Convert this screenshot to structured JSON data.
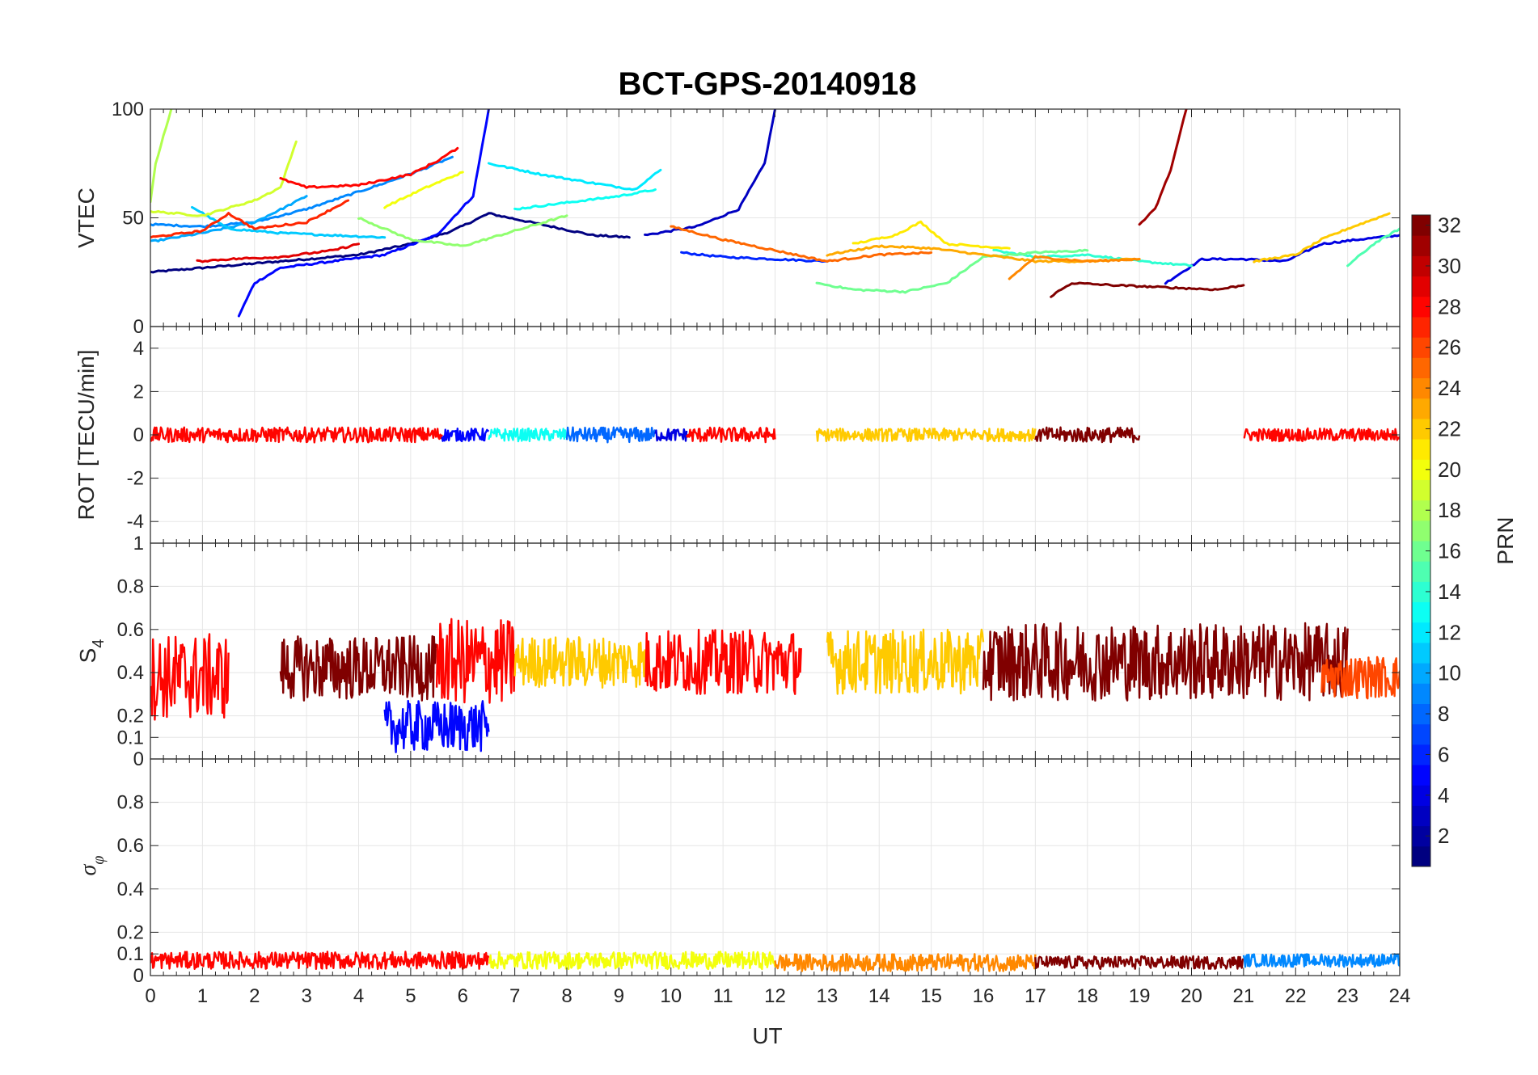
{
  "figure": {
    "title": "BCT-GPS-20140918",
    "xlabel": "UT",
    "x_ticks": [
      "0",
      "1",
      "2",
      "3",
      "4",
      "5",
      "6",
      "7",
      "8",
      "9",
      "10",
      "11",
      "12",
      "13",
      "14",
      "15",
      "16",
      "17",
      "18",
      "19",
      "20",
      "21",
      "22",
      "23",
      "24"
    ]
  },
  "chart_data": [
    {
      "type": "line",
      "id": "vtec",
      "ylabel": "VTEC",
      "xlim": [
        0,
        24
      ],
      "ylim": [
        0,
        100
      ],
      "y_ticks": [
        0,
        50,
        100
      ],
      "y_tick_labels": [
        "0",
        "50",
        "100"
      ],
      "color_by": "PRN",
      "series": [
        {
          "prn": 1,
          "points": [
            [
              0,
              25
            ],
            [
              1,
              27
            ],
            [
              2,
              29
            ],
            [
              3,
              31
            ],
            [
              4,
              33
            ],
            [
              5,
              38
            ],
            [
              5.8,
              44
            ],
            [
              6.5,
              52
            ],
            [
              7.3,
              48
            ],
            [
              8.5,
              42
            ],
            [
              9.2,
              41
            ]
          ]
        },
        {
          "prn": 5,
          "points": [
            [
              1.7,
              5
            ],
            [
              2.0,
              20
            ],
            [
              2.5,
              27
            ],
            [
              3.5,
              30
            ],
            [
              4.5,
              33
            ],
            [
              5.5,
              42
            ],
            [
              6.2,
              60
            ],
            [
              6.5,
              100
            ]
          ]
        },
        {
          "prn": 3,
          "points": [
            [
              9.5,
              42
            ],
            [
              10.5,
              46
            ],
            [
              11.3,
              54
            ],
            [
              11.8,
              75
            ],
            [
              12.0,
              100
            ]
          ]
        },
        {
          "prn": 6,
          "points": [
            [
              10.2,
              34
            ],
            [
              11,
              32
            ],
            [
              12,
              31
            ],
            [
              13,
              30
            ]
          ]
        },
        {
          "prn": 4,
          "points": [
            [
              19.5,
              20
            ],
            [
              20.2,
              31
            ],
            [
              21,
              31
            ],
            [
              21.8,
              30
            ],
            [
              22.5,
              38
            ],
            [
              23.2,
              40
            ],
            [
              24,
              42
            ]
          ]
        },
        {
          "prn": 9,
          "points": [
            [
              0,
              47
            ],
            [
              1,
              46
            ],
            [
              2,
              48
            ],
            [
              3,
              54
            ],
            [
              3.5,
              58
            ],
            [
              4,
              62
            ],
            [
              4.5,
              66
            ],
            [
              5.2,
              72
            ],
            [
              5.8,
              78
            ]
          ]
        },
        {
          "prn": 10,
          "points": [
            [
              0,
              39
            ],
            [
              1,
              43
            ],
            [
              2,
              48
            ],
            [
              2.6,
              55
            ],
            [
              3.0,
              60
            ]
          ]
        },
        {
          "prn": 11,
          "points": [
            [
              0.8,
              55
            ],
            [
              1.5,
              45
            ],
            [
              2.5,
              43
            ],
            [
              3.5,
              42
            ],
            [
              4.5,
              41
            ]
          ]
        },
        {
          "prn": 12,
          "points": [
            [
              6.5,
              75
            ],
            [
              7.5,
              70
            ],
            [
              8.5,
              66
            ],
            [
              9.3,
              63
            ],
            [
              9.8,
              72
            ]
          ]
        },
        {
          "prn": 13,
          "points": [
            [
              7,
              54
            ],
            [
              8,
              57
            ],
            [
              9,
              60
            ],
            [
              9.7,
              63
            ]
          ]
        },
        {
          "prn": 14,
          "points": [
            [
              16.2,
              35
            ],
            [
              17,
              32
            ],
            [
              18,
              33
            ],
            [
              19,
              30
            ],
            [
              20,
              28
            ]
          ]
        },
        {
          "prn": 15,
          "points": [
            [
              23,
              28
            ],
            [
              23.5,
              38
            ],
            [
              24,
              45
            ]
          ]
        },
        {
          "prn": 16,
          "points": [
            [
              12.8,
              20
            ],
            [
              13.5,
              17
            ],
            [
              14.5,
              16
            ],
            [
              15.3,
              20
            ],
            [
              16,
              32
            ],
            [
              17,
              34
            ],
            [
              18,
              35
            ]
          ]
        },
        {
          "prn": 17,
          "points": [
            [
              4,
              50
            ],
            [
              5,
              40
            ],
            [
              6,
              37
            ],
            [
              7,
              44
            ],
            [
              8,
              51
            ]
          ]
        },
        {
          "prn": 18,
          "points": [
            [
              0,
              57
            ],
            [
              0.1,
              75
            ],
            [
              0.4,
              100
            ]
          ]
        },
        {
          "prn": 19,
          "points": [
            [
              0,
              53
            ],
            [
              1,
              51
            ],
            [
              2,
              58
            ],
            [
              2.5,
              64
            ],
            [
              2.8,
              85
            ]
          ]
        },
        {
          "prn": 20,
          "points": [
            [
              4.5,
              55
            ],
            [
              5.3,
              64
            ],
            [
              6,
              71
            ]
          ]
        },
        {
          "prn": 21,
          "points": [
            [
              13.5,
              38
            ],
            [
              14.3,
              42
            ],
            [
              14.8,
              48
            ],
            [
              15.3,
              38
            ],
            [
              16.5,
              36
            ]
          ]
        },
        {
          "prn": 22,
          "points": [
            [
              21.2,
              30
            ],
            [
              22,
              33
            ],
            [
              22.5,
              40
            ],
            [
              23,
              45
            ],
            [
              23.8,
              52
            ]
          ]
        },
        {
          "prn": 23,
          "points": [
            [
              13,
              33
            ],
            [
              14,
              37
            ],
            [
              15,
              36
            ],
            [
              16,
              33
            ],
            [
              17,
              30
            ],
            [
              18,
              30
            ],
            [
              19,
              31
            ]
          ]
        },
        {
          "prn": 24,
          "points": [
            [
              16.5,
              22
            ],
            [
              17,
              32
            ],
            [
              18,
              30
            ],
            [
              19,
              31
            ]
          ]
        },
        {
          "prn": 25,
          "points": [
            [
              10,
              46
            ],
            [
              11,
              40
            ],
            [
              12,
              35
            ],
            [
              13,
              30
            ],
            [
              14,
              33
            ],
            [
              15,
              34
            ]
          ]
        },
        {
          "prn": 27,
          "points": [
            [
              0,
              41
            ],
            [
              1,
              44
            ],
            [
              1.5,
              52
            ],
            [
              2,
              45
            ],
            [
              3,
              48
            ],
            [
              3.8,
              58
            ]
          ]
        },
        {
          "prn": 28,
          "points": [
            [
              2.5,
              68
            ],
            [
              3,
              64
            ],
            [
              4,
              65
            ],
            [
              5,
              70
            ],
            [
              5.5,
              76
            ],
            [
              5.9,
              82
            ]
          ]
        },
        {
          "prn": 29,
          "points": [
            [
              0.9,
              30
            ],
            [
              1.5,
              31
            ],
            [
              2.5,
              32
            ],
            [
              3.5,
              35
            ],
            [
              4,
              38
            ]
          ]
        },
        {
          "prn": 31,
          "points": [
            [
              19,
              47
            ],
            [
              19.3,
              54
            ],
            [
              19.6,
              72
            ],
            [
              19.9,
              100
            ]
          ]
        },
        {
          "prn": 32,
          "points": [
            [
              17.3,
              14
            ],
            [
              17.7,
              20
            ],
            [
              18.5,
              19
            ],
            [
              19.5,
              18
            ],
            [
              20.5,
              17
            ],
            [
              21,
              19
            ]
          ]
        }
      ]
    },
    {
      "type": "line",
      "id": "rot",
      "ylabel": "ROT [TECU/min]",
      "xlim": [
        0,
        24
      ],
      "ylim": [
        -5,
        5
      ],
      "y_ticks": [
        -4,
        -2,
        0,
        2,
        4
      ],
      "y_tick_labels": [
        "-4",
        "-2",
        "0",
        "2",
        "4"
      ],
      "color_by": "PRN",
      "band_center": 0,
      "bands": [
        {
          "prn": 28,
          "x_range": [
            0,
            5.6
          ],
          "amplitude": 0.35
        },
        {
          "prn": 5,
          "x_range": [
            5.6,
            6.5
          ],
          "amplitude": 0.3
        },
        {
          "prn": 13,
          "x_range": [
            6.5,
            8.0
          ],
          "amplitude": 0.3
        },
        {
          "prn": 8,
          "x_range": [
            8.0,
            9.7
          ],
          "amplitude": 0.35
        },
        {
          "prn": 4,
          "x_range": [
            9.7,
            10.3
          ],
          "amplitude": 0.3
        },
        {
          "prn": 28,
          "x_range": [
            10.3,
            12.0
          ],
          "amplitude": 0.35
        },
        {
          "prn": 22,
          "x_range": [
            12.8,
            17.0
          ],
          "amplitude": 0.3
        },
        {
          "prn": 32,
          "x_range": [
            17.0,
            19.0
          ],
          "amplitude": 0.35
        },
        {
          "prn": 28,
          "x_range": [
            21.0,
            24.0
          ],
          "amplitude": 0.3
        }
      ]
    },
    {
      "type": "line",
      "id": "s4",
      "ylabel": "S4",
      "xlim": [
        0,
        24
      ],
      "ylim": [
        0,
        1
      ],
      "y_ticks": [
        0,
        0.1,
        0.2,
        0.4,
        0.6,
        0.8,
        1
      ],
      "y_tick_labels": [
        "0",
        "0.1",
        "0.2",
        "0.4",
        "0.6",
        "0.8",
        "1"
      ],
      "color_by": "PRN",
      "bands": [
        {
          "prn": 28,
          "x_range": [
            0,
            1.5
          ],
          "center": 0.38,
          "amplitude": 0.2
        },
        {
          "prn": 32,
          "x_range": [
            2.5,
            5.5
          ],
          "center": 0.42,
          "amplitude": 0.15
        },
        {
          "prn": 5,
          "x_range": [
            4.5,
            6.5
          ],
          "center": 0.15,
          "amplitude": 0.12
        },
        {
          "prn": 28,
          "x_range": [
            5.5,
            7.0
          ],
          "center": 0.45,
          "amplitude": 0.2
        },
        {
          "prn": 22,
          "x_range": [
            7.0,
            9.5
          ],
          "center": 0.45,
          "amplitude": 0.12
        },
        {
          "prn": 28,
          "x_range": [
            9.5,
            12.5
          ],
          "center": 0.45,
          "amplitude": 0.15
        },
        {
          "prn": 22,
          "x_range": [
            13,
            16
          ],
          "center": 0.45,
          "amplitude": 0.15
        },
        {
          "prn": 32,
          "x_range": [
            16,
            23
          ],
          "center": 0.45,
          "amplitude": 0.18
        },
        {
          "prn": 26,
          "x_range": [
            22.5,
            24
          ],
          "center": 0.38,
          "amplitude": 0.1
        }
      ]
    },
    {
      "type": "line",
      "id": "sigma_phi",
      "ylabel": "σφ",
      "xlim": [
        0,
        24
      ],
      "ylim": [
        0,
        1
      ],
      "y_ticks": [
        0,
        0.1,
        0.2,
        0.4,
        0.6,
        0.8
      ],
      "y_tick_labels": [
        "0",
        "0.1",
        "0.2",
        "0.4",
        "0.6",
        "0.8"
      ],
      "color_by": "PRN",
      "bands": [
        {
          "prn": 28,
          "x_range": [
            0,
            6.5
          ],
          "center": 0.07,
          "amplitude": 0.04
        },
        {
          "prn": 20,
          "x_range": [
            6.5,
            12
          ],
          "center": 0.07,
          "amplitude": 0.04
        },
        {
          "prn": 24,
          "x_range": [
            12,
            17
          ],
          "center": 0.06,
          "amplitude": 0.04
        },
        {
          "prn": 32,
          "x_range": [
            17,
            21
          ],
          "center": 0.06,
          "amplitude": 0.03
        },
        {
          "prn": 9,
          "x_range": [
            21,
            24
          ],
          "center": 0.07,
          "amplitude": 0.03
        }
      ]
    }
  ],
  "colorbar": {
    "label": "PRN",
    "min": 1,
    "max": 32,
    "ticks": [
      2,
      4,
      6,
      8,
      10,
      12,
      14,
      16,
      18,
      20,
      22,
      24,
      26,
      28,
      30,
      32
    ],
    "colormap": "jet"
  }
}
